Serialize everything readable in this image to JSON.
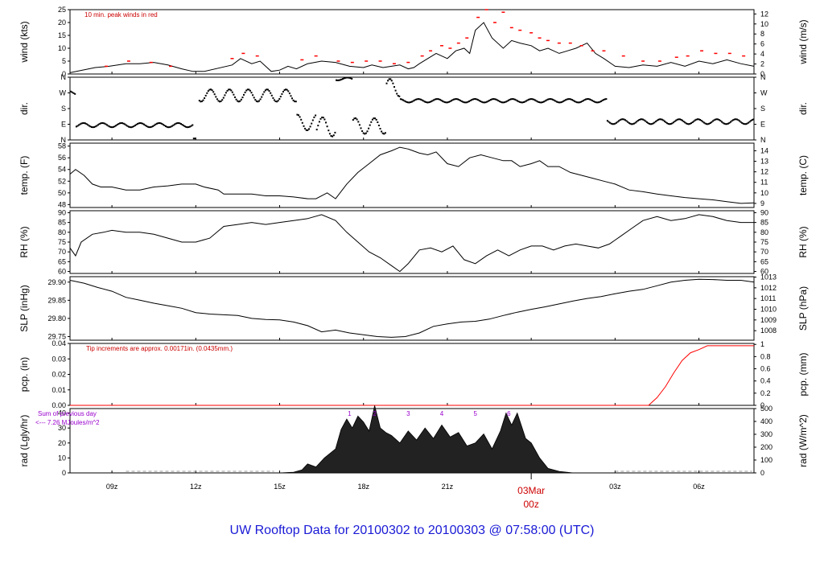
{
  "title": "UW Rooftop Data for 20100302  to  20100303 @ 07:58:00  (UTC)",
  "colors": {
    "title": "#1a1ad6",
    "annotation": "#cc0000",
    "rad_note": "#9900cc",
    "trace": "#000000",
    "peak": "#ff0000",
    "precip": "#ff0000"
  },
  "x_axis": {
    "unit": "hours UTC from 2010-03-02 00z",
    "range_hours": [
      7.5,
      31.97
    ],
    "ticks": [
      {
        "hour": 9,
        "label": "09z"
      },
      {
        "hour": 12,
        "label": "12z"
      },
      {
        "hour": 15,
        "label": "15z"
      },
      {
        "hour": 18,
        "label": "18z"
      },
      {
        "hour": 21,
        "label": "21z"
      },
      {
        "hour": 24,
        "label": ""
      },
      {
        "hour": 27,
        "label": "03z"
      },
      {
        "hour": 30,
        "label": "06z"
      }
    ],
    "day_marker": {
      "hour": 24,
      "label_top": "03Mar",
      "label_bottom": "00z"
    }
  },
  "chart_data": [
    {
      "type": "line",
      "name": "wind",
      "ylabel": "wind (kts)",
      "ylabel_right": "wind (m/s)",
      "ylim": [
        0,
        25
      ],
      "yticks": [
        "0",
        "5",
        "10",
        "15",
        "20",
        "25"
      ],
      "yticks_right": [
        {
          "v": 0,
          "label": "0"
        },
        {
          "v": 2,
          "label": "2"
        },
        {
          "v": 4,
          "label": "4"
        },
        {
          "v": 6,
          "label": "6"
        },
        {
          "v": 8,
          "label": "8"
        },
        {
          "v": 10,
          "label": "10"
        },
        {
          "v": 12,
          "label": "12"
        }
      ],
      "right_scale": 0.5144,
      "annotation": "10 min. peak winds in red",
      "x": [
        7.5,
        8.4,
        8.9,
        9.5,
        10.0,
        10.5,
        11.0,
        11.5,
        11.9,
        12.3,
        13.3,
        13.6,
        14.0,
        14.3,
        14.7,
        15.0,
        15.3,
        15.6,
        16.0,
        16.5,
        17.0,
        17.5,
        18.0,
        18.3,
        18.7,
        19.0,
        19.3,
        19.6,
        19.8,
        20.0,
        20.3,
        20.6,
        21.0,
        21.3,
        21.6,
        21.8,
        22.0,
        22.3,
        22.6,
        23.0,
        23.3,
        23.6,
        24.0,
        24.3,
        24.6,
        25.0,
        25.3,
        25.6,
        26.0,
        26.3,
        26.6,
        27.0,
        27.5,
        28.0,
        28.5,
        29.0,
        29.5,
        30.0,
        30.5,
        31.0,
        31.5,
        31.97
      ],
      "y": [
        0.5,
        2.5,
        3,
        4,
        4,
        4.5,
        3.5,
        2,
        1,
        1,
        3.5,
        6,
        4,
        5,
        1,
        1.5,
        3,
        2,
        4,
        5,
        4.5,
        3,
        2.5,
        3.5,
        2.5,
        3,
        3.5,
        2,
        2.5,
        4,
        6,
        8,
        6,
        9,
        10,
        8,
        17,
        20,
        14,
        10,
        13,
        12,
        11,
        9,
        10,
        8,
        9,
        10,
        12,
        8,
        6,
        3,
        2.5,
        3.5,
        3,
        4.5,
        3,
        5,
        4,
        5.5,
        4,
        3
      ],
      "peaks": {
        "x": [
          8.8,
          9.6,
          10.4,
          11.1,
          13.3,
          13.7,
          14.2,
          15.8,
          16.3,
          17.1,
          17.6,
          18.1,
          18.6,
          19.1,
          19.6,
          20.1,
          20.4,
          20.8,
          21.1,
          21.4,
          21.7,
          22.1,
          22.4,
          22.7,
          23.0,
          23.3,
          23.6,
          24.0,
          24.3,
          24.6,
          25.0,
          25.4,
          25.8,
          26.2,
          26.6,
          27.3,
          28.0,
          28.6,
          29.2,
          29.6,
          30.1,
          30.6,
          31.1,
          31.6
        ],
        "y": [
          3,
          5,
          4.5,
          3,
          6,
          8,
          7,
          5.5,
          7,
          5,
          4.5,
          5,
          5,
          4,
          4.5,
          7,
          9,
          11,
          10,
          12,
          14,
          22,
          25,
          20,
          24,
          18,
          17,
          16,
          14,
          13,
          12,
          12,
          11,
          9,
          9,
          7,
          5,
          5,
          6.5,
          7,
          9,
          8,
          8,
          7
        ]
      }
    },
    {
      "type": "scatter",
      "name": "dir",
      "ylabel": "dir.",
      "ylabel_right": "dir.",
      "ylim": [
        0,
        360
      ],
      "yticks": [
        {
          "v": 0,
          "label": "N"
        },
        {
          "v": 90,
          "label": "E"
        },
        {
          "v": 180,
          "label": "S"
        },
        {
          "v": 270,
          "label": "W"
        },
        {
          "v": 360,
          "label": "N"
        }
      ],
      "segments": [
        {
          "x0": 7.5,
          "x1": 7.7,
          "dir": 270,
          "spread": 12
        },
        {
          "x0": 7.7,
          "x1": 11.9,
          "dir": 85,
          "spread": 12
        },
        {
          "x0": 11.9,
          "x1": 12.0,
          "dir": 5,
          "spread": 4
        },
        {
          "x0": 12.1,
          "x1": 15.6,
          "dir": 255,
          "spread": 35
        },
        {
          "x0": 15.6,
          "x1": 16.3,
          "dir": 100,
          "spread": 45
        },
        {
          "x0": 16.3,
          "x1": 17.0,
          "dir": 75,
          "spread": 55
        },
        {
          "x0": 17.0,
          "x1": 17.6,
          "dir": 350,
          "spread": 8
        },
        {
          "x0": 17.6,
          "x1": 18.8,
          "dir": 80,
          "spread": 45
        },
        {
          "x0": 18.8,
          "x1": 19.3,
          "dir": 300,
          "spread": 50
        },
        {
          "x0": 19.3,
          "x1": 26.7,
          "dir": 225,
          "spread": 10
        },
        {
          "x0": 26.7,
          "x1": 31.97,
          "dir": 105,
          "spread": 14
        }
      ]
    },
    {
      "type": "line",
      "name": "temp",
      "ylabel": "temp. (F)",
      "ylabel_right": "temp. (C)",
      "ylim": [
        47.5,
        58.5
      ],
      "yticks": [
        "48",
        "50",
        "52",
        "54",
        "56",
        "58"
      ],
      "yticks_right": [
        {
          "v": 9,
          "label": "9"
        },
        {
          "v": 10,
          "label": "10"
        },
        {
          "v": 11,
          "label": "11"
        },
        {
          "v": 12,
          "label": "12"
        },
        {
          "v": 13,
          "label": "13"
        },
        {
          "v": 14,
          "label": "14"
        }
      ],
      "right_is_celsius": true,
      "x": [
        7.5,
        7.7,
        8.0,
        8.3,
        8.6,
        9.0,
        9.5,
        10.0,
        10.5,
        11.0,
        11.5,
        12.0,
        12.3,
        12.8,
        13.0,
        13.5,
        14.0,
        14.5,
        15.0,
        15.5,
        16.0,
        16.3,
        16.7,
        17.0,
        17.4,
        17.8,
        18.2,
        18.6,
        19.0,
        19.3,
        19.6,
        20.0,
        20.3,
        20.6,
        21.0,
        21.4,
        21.8,
        22.2,
        22.6,
        23.0,
        23.3,
        23.6,
        24.0,
        24.3,
        24.6,
        25.0,
        25.4,
        25.8,
        26.2,
        26.6,
        27.0,
        27.5,
        28.0,
        28.5,
        29.0,
        29.5,
        30.0,
        30.5,
        31.0,
        31.5,
        31.97
      ],
      "y": [
        53.2,
        54.0,
        53.0,
        51.5,
        51.0,
        51.0,
        50.5,
        50.5,
        51.0,
        51.2,
        51.5,
        51.5,
        51.0,
        50.5,
        49.8,
        49.8,
        49.8,
        49.5,
        49.5,
        49.3,
        49.0,
        49.0,
        50.0,
        49.0,
        51.5,
        53.5,
        55.0,
        56.5,
        57.2,
        57.8,
        57.5,
        56.8,
        56.5,
        57.0,
        55.0,
        54.5,
        56.0,
        56.5,
        56.0,
        55.5,
        55.5,
        54.5,
        55.0,
        55.5,
        54.5,
        54.5,
        53.5,
        53.0,
        52.5,
        52.0,
        51.5,
        50.5,
        50.2,
        49.8,
        49.5,
        49.2,
        49.0,
        48.8,
        48.5,
        48.2,
        48.3
      ]
    },
    {
      "type": "line",
      "name": "rh",
      "ylabel": "RH (%)",
      "ylabel_right": "RH (%)",
      "ylim": [
        59,
        91
      ],
      "yticks": [
        "60",
        "65",
        "70",
        "75",
        "80",
        "85",
        "90"
      ],
      "yticks_right": [
        {
          "v": 60,
          "label": "60"
        },
        {
          "v": 65,
          "label": "65"
        },
        {
          "v": 70,
          "label": "70"
        },
        {
          "v": 75,
          "label": "75"
        },
        {
          "v": 80,
          "label": "80"
        },
        {
          "v": 85,
          "label": "85"
        },
        {
          "v": 90,
          "label": "90"
        }
      ],
      "x": [
        7.5,
        7.7,
        7.9,
        8.3,
        8.7,
        9.0,
        9.5,
        10.0,
        10.5,
        11.0,
        11.5,
        12.0,
        12.5,
        13.0,
        13.5,
        14.0,
        14.5,
        15.0,
        15.5,
        16.0,
        16.5,
        17.0,
        17.4,
        17.8,
        18.2,
        18.6,
        19.0,
        19.3,
        19.6,
        20.0,
        20.4,
        20.8,
        21.2,
        21.6,
        22.0,
        22.4,
        22.8,
        23.2,
        23.6,
        24.0,
        24.4,
        24.8,
        25.2,
        25.6,
        26.0,
        26.4,
        26.8,
        27.2,
        27.6,
        28.0,
        28.5,
        29.0,
        29.5,
        30.0,
        30.5,
        31.0,
        31.5,
        31.97
      ],
      "y": [
        72,
        68,
        75,
        79,
        80,
        81,
        80,
        80,
        79,
        77,
        75,
        75,
        77,
        83,
        84,
        85,
        84,
        85,
        86,
        87,
        89,
        86,
        80,
        75,
        70,
        67,
        63,
        60,
        64,
        71,
        72,
        70,
        73,
        66,
        64,
        68,
        71,
        68,
        71,
        73,
        73,
        71,
        73,
        74,
        73,
        72,
        74,
        78,
        82,
        86,
        88,
        86,
        87,
        89,
        88,
        86,
        85,
        85
      ]
    },
    {
      "type": "line",
      "name": "slp",
      "ylabel": "SLP (inHg)",
      "ylabel_right": "SLP (hPa)",
      "ylim": [
        29.74,
        29.915
      ],
      "yticks": [
        "29.75",
        "29.80",
        "29.85",
        "29.90"
      ],
      "yticks_right": [
        {
          "v": 1008,
          "label": "1008"
        },
        {
          "v": 1009,
          "label": "1009"
        },
        {
          "v": 1010,
          "label": "1010"
        },
        {
          "v": 1011,
          "label": "1011"
        },
        {
          "v": 1012,
          "label": "1012"
        },
        {
          "v": 1013,
          "label": "1013"
        }
      ],
      "right_is_hpa": true,
      "x": [
        7.5,
        8.0,
        8.5,
        9.0,
        9.5,
        10.0,
        10.5,
        11.0,
        11.5,
        12.0,
        12.5,
        13.0,
        13.5,
        14.0,
        14.5,
        15.0,
        15.5,
        16.0,
        16.5,
        17.0,
        17.5,
        18.0,
        18.5,
        19.0,
        19.5,
        20.0,
        20.5,
        21.0,
        21.5,
        22.0,
        22.5,
        23.0,
        23.5,
        24.0,
        24.5,
        25.0,
        25.5,
        26.0,
        26.5,
        27.0,
        27.5,
        28.0,
        28.5,
        29.0,
        29.5,
        30.0,
        30.5,
        31.0,
        31.5,
        31.97
      ],
      "y": [
        29.905,
        29.897,
        29.885,
        29.875,
        29.858,
        29.85,
        29.842,
        29.835,
        29.828,
        29.816,
        29.812,
        29.81,
        29.808,
        29.8,
        29.797,
        29.796,
        29.79,
        29.78,
        29.763,
        29.768,
        29.76,
        29.755,
        29.75,
        29.748,
        29.75,
        29.76,
        29.778,
        29.785,
        29.79,
        29.792,
        29.798,
        29.808,
        29.817,
        29.825,
        29.832,
        29.84,
        29.848,
        29.855,
        29.86,
        29.868,
        29.875,
        29.88,
        29.89,
        29.9,
        29.905,
        29.908,
        29.907,
        29.905,
        29.905,
        29.9
      ]
    },
    {
      "type": "line",
      "name": "pcp",
      "ylabel": "pcp. (in)",
      "ylabel_right": "pcp. (mm)",
      "ylim": [
        0,
        0.04
      ],
      "yticks": [
        "0.00",
        "0.01",
        "0.02",
        "0.03",
        "0.04"
      ],
      "yticks_right": [
        {
          "v": 0,
          "label": "0"
        },
        {
          "v": 0.2,
          "label": "0.2"
        },
        {
          "v": 0.4,
          "label": "0.4"
        },
        {
          "v": 0.6,
          "label": "0.6"
        },
        {
          "v": 0.8,
          "label": "0.8"
        },
        {
          "v": 1,
          "label": "1"
        }
      ],
      "right_is_mm": true,
      "annotation": "Tip increments are approx. 0.00171in. (0.0435mm.)",
      "x": [
        7.5,
        28.2,
        28.5,
        28.8,
        29.1,
        29.4,
        29.7,
        30.0,
        30.3,
        31.97
      ],
      "y": [
        0,
        0,
        0.005,
        0.012,
        0.021,
        0.029,
        0.034,
        0.036,
        0.0385,
        0.0385
      ]
    },
    {
      "type": "area",
      "name": "rad",
      "ylabel": "rad (Lgly/hr)",
      "ylabel_right": "rad (W/m^2)",
      "ylim": [
        0,
        43
      ],
      "yticks": [
        "0",
        "10",
        "20",
        "30",
        "40"
      ],
      "yticks_right": [
        {
          "v": 0,
          "label": "0"
        },
        {
          "v": 100,
          "label": "100"
        },
        {
          "v": 200,
          "label": "200"
        },
        {
          "v": 300,
          "label": "300"
        },
        {
          "v": 400,
          "label": "400"
        },
        {
          "v": 500,
          "label": "500"
        }
      ],
      "right_is_wm2": true,
      "note_line1": "Sum of previous day",
      "note_line2": "<--- 7.26 MJoules/m^2",
      "markers": [
        {
          "hour": 17.5,
          "label": "1"
        },
        {
          "hour": 18.4,
          "label": "2"
        },
        {
          "hour": 19.6,
          "label": "3"
        },
        {
          "hour": 20.8,
          "label": "4"
        },
        {
          "hour": 22.0,
          "label": "5"
        },
        {
          "hour": 23.2,
          "label": "6"
        }
      ],
      "x": [
        7.5,
        15.0,
        15.5,
        15.8,
        16.0,
        16.3,
        16.6,
        17.0,
        17.2,
        17.4,
        17.6,
        17.8,
        18.0,
        18.2,
        18.4,
        18.6,
        18.8,
        19.0,
        19.3,
        19.6,
        19.9,
        20.2,
        20.5,
        20.8,
        21.1,
        21.4,
        21.7,
        22.0,
        22.3,
        22.6,
        22.9,
        23.1,
        23.3,
        23.5,
        23.8,
        24.0,
        24.3,
        24.6,
        25.0,
        25.5,
        31.97
      ],
      "y": [
        0,
        0,
        0.5,
        2,
        6,
        4,
        10,
        16,
        29,
        36,
        30,
        38,
        34,
        28,
        45,
        30,
        27,
        25,
        20,
        28,
        22,
        30,
        23,
        32,
        24,
        27,
        18,
        20,
        26,
        16,
        28,
        40,
        32,
        40,
        23,
        20,
        10,
        3,
        1,
        0,
        0
      ]
    }
  ]
}
